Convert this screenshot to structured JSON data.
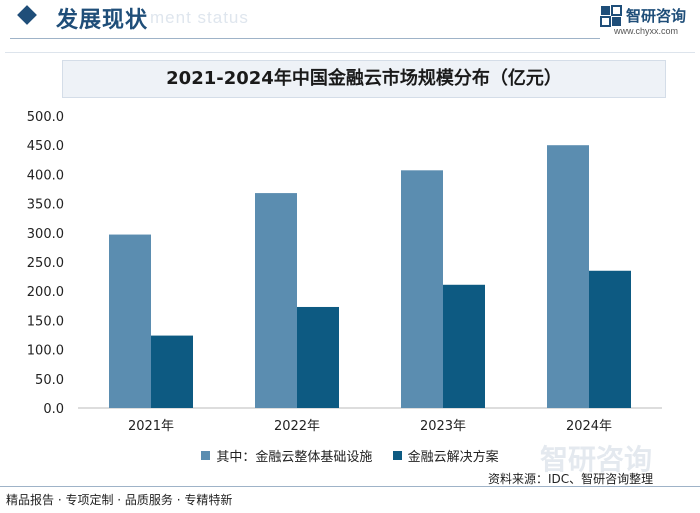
{
  "header": {
    "title": "发展现状",
    "ghost_text": "ment status",
    "brand_name": "智研咨询",
    "brand_url": "www.chyxx.com"
  },
  "colors": {
    "series1": "#5b8db0",
    "series2": "#0d5a82",
    "brand": "#1f4e79"
  },
  "chart_data": {
    "type": "bar",
    "title": "2021-2024年中国金融云市场规模分布（亿元）",
    "categories": [
      "2021年",
      "2022年",
      "2023年",
      "2024年"
    ],
    "series": [
      {
        "name": "其中：金融云整体基础设施",
        "values": [
          297,
          368,
          407,
          450
        ]
      },
      {
        "name": "金融云解决方案",
        "values": [
          124,
          173,
          211,
          235
        ]
      }
    ],
    "yticks": [
      "0.0",
      "50.0",
      "100.0",
      "150.0",
      "200.0",
      "250.0",
      "300.0",
      "350.0",
      "400.0",
      "450.0",
      "500.0"
    ],
    "ylim": [
      0,
      500
    ],
    "xlabel": "",
    "ylabel": "",
    "grid": false,
    "legend_position": "bottom"
  },
  "watermark": "智研咨询",
  "source": "资料来源：IDC、智研咨询整理",
  "footer": "精品报告 · 专项定制 · 品质服务 · 专精特新"
}
